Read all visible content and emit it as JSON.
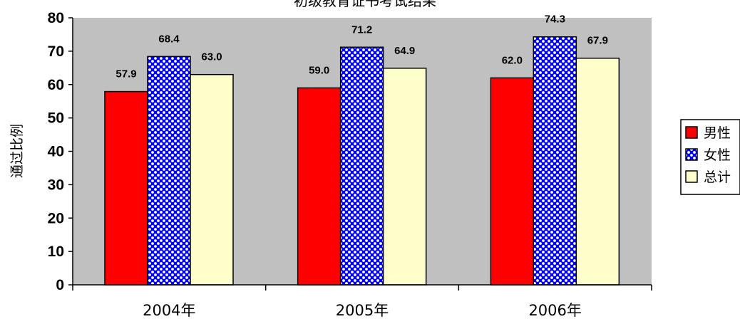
{
  "chart_data": {
    "type": "bar",
    "title": "初级教育证书考试结果",
    "ylabel": "通过比例",
    "xlabel": "",
    "categories": [
      "2004年",
      "2005年",
      "2006年"
    ],
    "ylim": [
      0,
      80
    ],
    "yticks": [
      0,
      10,
      20,
      30,
      40,
      50,
      60,
      70,
      80
    ],
    "grid": false,
    "legend_position": "right",
    "series": [
      {
        "name": "男性",
        "values": [
          57.9,
          59.0,
          62.0
        ],
        "labels": [
          "57.9",
          "59.0",
          "62.0"
        ],
        "color": "#ff0000",
        "pattern": "solid"
      },
      {
        "name": "女性",
        "values": [
          68.4,
          71.2,
          74.3
        ],
        "labels": [
          "68.4",
          "71.2",
          "74.3"
        ],
        "color": "#0000ff",
        "pattern": "dots"
      },
      {
        "name": "总计",
        "values": [
          63.0,
          64.9,
          67.9
        ],
        "labels": [
          "63.0",
          "64.9",
          "67.9"
        ],
        "color": "#ffffcc",
        "pattern": "solid"
      }
    ],
    "plot_background": "#c0c0c0"
  }
}
